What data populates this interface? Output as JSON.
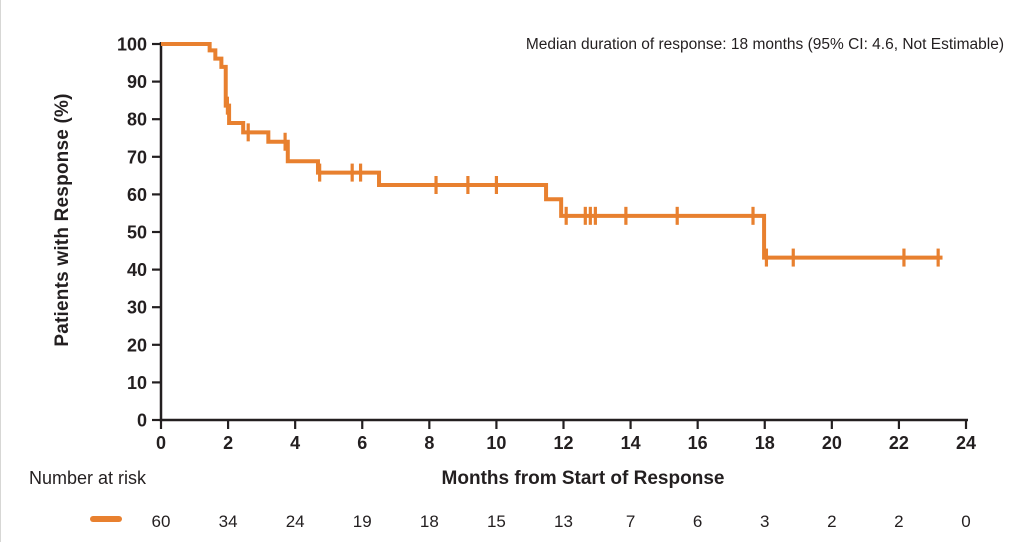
{
  "colors": {
    "line": "#E8802F",
    "axis": "#231F20",
    "text": "#231F20",
    "background": "#ffffff"
  },
  "annotation": "Median duration of response: 18 months (95% CI: 4.6, Not Estimable)",
  "chart_data": {
    "type": "line",
    "subtype": "kaplan-meier-step-curve",
    "title": "",
    "xlabel": "Months from Start of Response",
    "ylabel": "Patients with Response (%)",
    "xlim": [
      0,
      24
    ],
    "ylim": [
      0,
      100
    ],
    "xticks": [
      0,
      2,
      4,
      6,
      8,
      10,
      12,
      14,
      16,
      18,
      20,
      22,
      24
    ],
    "yticks": [
      0,
      10,
      20,
      30,
      40,
      50,
      60,
      70,
      80,
      90,
      100
    ],
    "grid": false,
    "legend_position": "none",
    "annotation": "Median duration of response: 18 months (95% CI: 4.6, Not Estimable)",
    "series": [
      {
        "name": "Patients with response",
        "color": "#E8802F",
        "start": [
          0,
          100
        ],
        "steps": [
          [
            1.45,
            98.3
          ],
          [
            1.62,
            96.1
          ],
          [
            1.8,
            93.9
          ],
          [
            1.93,
            83.6
          ],
          [
            2.03,
            79.0
          ],
          [
            2.45,
            76.5
          ],
          [
            3.2,
            74.0
          ],
          [
            3.78,
            68.8
          ],
          [
            4.68,
            65.8
          ],
          [
            6.5,
            62.5
          ],
          [
            11.48,
            58.7
          ],
          [
            11.93,
            54.3
          ],
          [
            17.98,
            43.2
          ]
        ],
        "end_time": 23.3,
        "censor_marks": [
          [
            1.98,
            83.6
          ],
          [
            2.6,
            76.5
          ],
          [
            3.7,
            74.0
          ],
          [
            4.73,
            65.8
          ],
          [
            5.7,
            65.8
          ],
          [
            5.95,
            65.8
          ],
          [
            8.2,
            62.5
          ],
          [
            9.15,
            62.5
          ],
          [
            10.0,
            62.5
          ],
          [
            12.08,
            54.3
          ],
          [
            12.65,
            54.3
          ],
          [
            12.8,
            54.3
          ],
          [
            12.95,
            54.3
          ],
          [
            13.86,
            54.3
          ],
          [
            15.39,
            54.3
          ],
          [
            17.65,
            54.3
          ],
          [
            18.05,
            43.2
          ],
          [
            18.85,
            43.2
          ],
          [
            22.15,
            43.2
          ],
          [
            23.17,
            43.2
          ]
        ]
      }
    ],
    "number_at_risk": {
      "label": "Number at risk",
      "times": [
        0,
        2,
        4,
        6,
        8,
        10,
        12,
        14,
        16,
        18,
        20,
        22,
        24
      ],
      "values": [
        60,
        34,
        24,
        19,
        18,
        15,
        13,
        7,
        6,
        3,
        2,
        2,
        0
      ]
    }
  }
}
